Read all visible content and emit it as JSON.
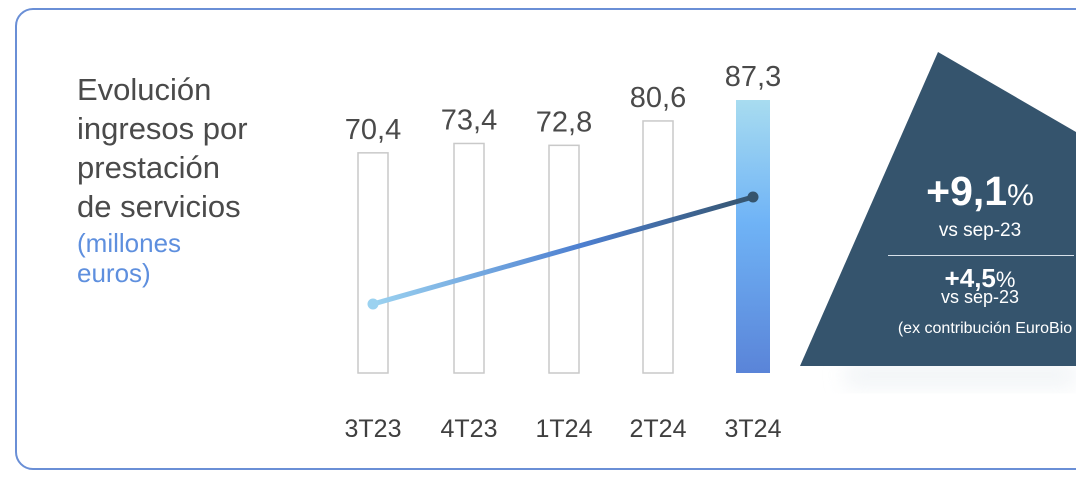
{
  "title": "Evolución\ningresos por\nprestación\nde servicios",
  "subtitle": "(millones\neuros)",
  "colors": {
    "border": "#6a8fd6",
    "triangle": "#35546d",
    "bar_outline": "#c9c9c9",
    "highlight_top": "#a8dcf0",
    "highlight_mid": "#6fb3f6",
    "highlight_bottom": "#5a84d8",
    "line_start": "#9bd2f0",
    "line_end": "#35546d"
  },
  "chart_data": {
    "type": "bar",
    "categories": [
      "3T23",
      "4T23",
      "1T24",
      "2T24",
      "3T24"
    ],
    "values": [
      70.4,
      73.4,
      72.8,
      80.6,
      87.3
    ],
    "value_labels": [
      "70,4",
      "73,4",
      "72,8",
      "80,6",
      "87,3"
    ],
    "highlighted_category": "3T24",
    "overlay_line": {
      "from_category": "3T23",
      "to_category": "3T24"
    }
  },
  "callout": {
    "growth_value": "+9,1",
    "growth_unit": "%",
    "growth_vs": "vs sep-23",
    "adj_value": "+4,5",
    "adj_unit": "%",
    "adj_vs": "vs sep-23",
    "adj_note": "(ex contribución EuroBio"
  }
}
